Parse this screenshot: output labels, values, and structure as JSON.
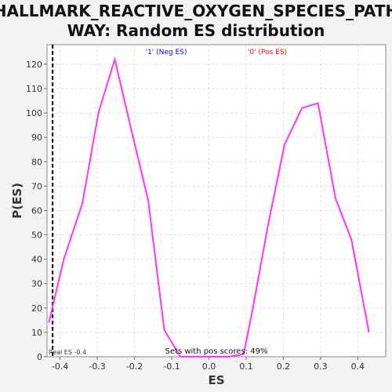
{
  "chart_data": {
    "type": "line",
    "title_line1": "HALLMARK_REACTIVE_OXYGEN_SPECIES_PATH",
    "title_line2": "WAY: Random ES distribution",
    "xlabel": "ES",
    "ylabel": "P(ES)",
    "xlim": [
      -0.435,
      0.475
    ],
    "ylim": [
      0,
      128
    ],
    "x_ticks": [
      -0.4,
      -0.3,
      -0.2,
      -0.1,
      0.0,
      0.1,
      0.2,
      0.3,
      0.4
    ],
    "x_tick_labels": [
      "-0.4",
      "-0.3",
      "-0.2",
      "-0.1",
      "0.0",
      "0.1",
      "0.2",
      "0.3",
      "0.4"
    ],
    "y_ticks": [
      0,
      10,
      20,
      30,
      40,
      50,
      60,
      70,
      80,
      90,
      100,
      110,
      120
    ],
    "grid": true,
    "series": [
      {
        "color": "#ff33ff",
        "x": [
          -0.43,
          -0.39,
          -0.34,
          -0.297,
          -0.253,
          -0.21,
          -0.163,
          -0.12,
          -0.077,
          -0.033,
          0.01,
          0.053,
          0.093,
          0.117,
          0.16,
          0.203,
          0.25,
          0.293,
          0.34,
          0.383,
          0.43
        ],
        "y": [
          14,
          40,
          63,
          100,
          122,
          94,
          64,
          11,
          0,
          0,
          0,
          0,
          1,
          19,
          55,
          87,
          102,
          104,
          65,
          48,
          10
        ]
      }
    ],
    "real_es": {
      "value": -0.42,
      "label": "Real ES -0.4"
    },
    "legend": [
      {
        "label": "'1' (Neg ES)",
        "color": "#0000ff"
      },
      {
        "label": "'0' (Pos ES)",
        "color": "#ff0000"
      }
    ],
    "annotation": "Sets with pos scores: 49%"
  }
}
